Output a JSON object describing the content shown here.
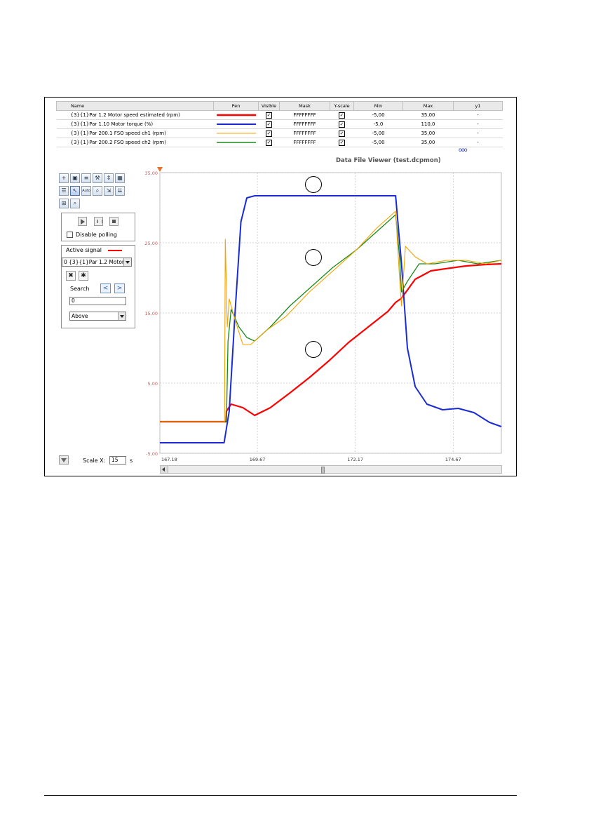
{
  "table": {
    "columns": [
      "Name",
      "Pen",
      "Visible",
      "Mask",
      "Y-scale",
      "Min",
      "Max",
      "y1"
    ],
    "rows": [
      {
        "name": "{3}{1}Par 1.2 Motor speed estimated (rpm)",
        "pen_color": "#ff0000",
        "pen_width": 2.5,
        "visible": true,
        "mask": "FFFFFFFF",
        "yscale": true,
        "min": "-5,00",
        "max": "35,00",
        "y1": "-"
      },
      {
        "name": "{3}{1}Par 1.10 Motor torque (%)",
        "pen_color": "#1a2bd6",
        "pen_width": 2,
        "visible": true,
        "mask": "FFFFFFFF",
        "yscale": true,
        "min": "-5,0",
        "max": "110,0",
        "y1": "-"
      },
      {
        "name": "{3}{1}Par 200.1 FSO speed ch1 (rpm)",
        "pen_color": "#f5a300",
        "pen_width": 1,
        "visible": true,
        "mask": "FFFFFFFF",
        "yscale": true,
        "min": "-5,00",
        "max": "35,00",
        "y1": "-"
      },
      {
        "name": "{3}{1}Par 200.2 FSO speed ch2 (rpm)",
        "pen_color": "#1a8a1a",
        "pen_width": 1.5,
        "visible": true,
        "mask": "FFFFFFFF",
        "yscale": true,
        "min": "-5,00",
        "max": "35,00",
        "y1": "-"
      }
    ],
    "more_indicator": "ooo"
  },
  "toolbar": {
    "rows": [
      [
        "add-signal-icon",
        "save-icon",
        "list-icon",
        "wrench-icon",
        "fit-icon",
        "image-icon"
      ],
      [
        "table-icon",
        "cursor-icon",
        "auto-icon",
        "zoom-region-icon",
        "export-icon",
        "download-icon"
      ],
      [
        "compare-icon",
        "zoom-icon"
      ]
    ],
    "auto_label": "Auto"
  },
  "playback": {
    "disable_polling_label": "Disable polling",
    "disable_polling_checked": false
  },
  "active_signal": {
    "title": "Active signal",
    "line_color": "#ff0000",
    "selected": "0 {3}{1}Par 1.2 Motor",
    "search_label": "Search",
    "prev_label": "<",
    "next_label": ">",
    "search_value": "0",
    "mode_value": "Above"
  },
  "scale": {
    "label": "Scale X:",
    "value": "15",
    "unit": "s"
  },
  "chart_title": "Data File Viewer (test.dcpmon)",
  "chart_data": {
    "type": "line",
    "title": "Data File Viewer (test.dcpmon)",
    "xlabel": "",
    "ylabel": "",
    "x_ticks": [
      "167.18",
      "169.67",
      "172.17",
      "174.67"
    ],
    "y_ticks": [
      "35,00",
      "25,00",
      "15,00",
      "5,00",
      "-5,00"
    ],
    "ylim": [
      -5,
      35
    ],
    "xlim": [
      167.18,
      175.9
    ],
    "grid": true,
    "series": [
      {
        "name": "{3}{1}Par 1.2 Motor speed estimated (rpm)",
        "color": "#ff0000",
        "x": [
          167.18,
          168.87,
          168.88,
          169.0,
          169.3,
          169.6,
          170.0,
          170.5,
          171.0,
          171.5,
          172.0,
          172.5,
          173.0,
          173.2,
          173.35,
          173.7,
          174.1,
          174.6,
          175.0,
          175.5,
          175.9
        ],
        "y": [
          -0.5,
          -0.5,
          1.0,
          2.0,
          1.5,
          0.4,
          1.5,
          3.6,
          5.8,
          8.2,
          10.8,
          13.0,
          15.2,
          16.5,
          17.1,
          19.8,
          21.0,
          21.4,
          21.7,
          21.9,
          22.0
        ]
      },
      {
        "name": "{3}{1}Par 1.10 Motor torque (%)",
        "color": "#1a2bd6",
        "x": [
          167.18,
          168.82,
          168.95,
          169.1,
          169.25,
          169.4,
          169.6,
          170.5,
          171.5,
          172.5,
          173.2,
          173.35,
          173.5,
          173.7,
          174.0,
          174.4,
          174.8,
          175.2,
          175.6,
          175.9
        ],
        "y": [
          -3.5,
          -3.5,
          1.0,
          15.0,
          28.0,
          31.4,
          31.7,
          31.7,
          31.7,
          31.7,
          31.7,
          22.0,
          10.0,
          4.5,
          2.0,
          1.2,
          1.4,
          0.8,
          -0.6,
          -1.2
        ]
      },
      {
        "name": "{3}{1}Par 200.1 FSO speed ch1 (rpm)",
        "color": "#f5a300",
        "x": [
          167.18,
          168.83,
          168.85,
          168.9,
          168.95,
          169.1,
          169.3,
          169.5,
          169.9,
          170.4,
          171.0,
          171.6,
          172.2,
          172.7,
          173.2,
          173.3,
          173.35,
          173.45,
          173.7,
          174.0,
          174.5,
          175.0,
          175.5,
          175.9
        ],
        "y": [
          -0.5,
          -0.5,
          25.5,
          13.0,
          17.0,
          14.0,
          10.5,
          10.5,
          12.5,
          14.5,
          18.0,
          21.0,
          24.0,
          27.0,
          29.5,
          20.0,
          16.0,
          24.5,
          23.0,
          22.0,
          22.5,
          22.5,
          22.0,
          22.5
        ]
      },
      {
        "name": "{3}{1}Par 200.2 FSO speed ch2 (rpm)",
        "color": "#1a8a1a",
        "x": [
          167.18,
          168.88,
          168.92,
          169.0,
          169.2,
          169.4,
          169.6,
          170.0,
          170.5,
          171.0,
          171.6,
          172.2,
          172.7,
          173.2,
          173.3,
          173.35,
          173.5,
          173.8,
          174.2,
          174.8,
          175.3,
          175.9
        ],
        "y": [
          -0.5,
          -0.5,
          11.0,
          15.5,
          13.0,
          11.5,
          11.0,
          13.0,
          16.0,
          18.5,
          21.5,
          24.0,
          26.5,
          29.0,
          23.0,
          18.0,
          19.5,
          22.0,
          22.0,
          22.5,
          22.0,
          22.5
        ]
      }
    ]
  },
  "callouts": [
    "",
    "",
    ""
  ]
}
